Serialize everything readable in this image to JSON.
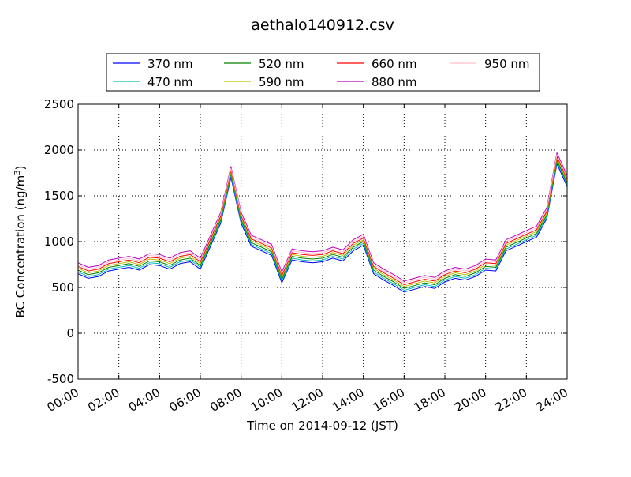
{
  "chart_data": {
    "type": "line",
    "title": "aethalo140912.csv",
    "xlabel": "Time on 2014-09-12 (JST)",
    "ylabel_main": "BC Concentration (ng/m",
    "ylabel_sup": "3",
    "ylabel_tail": ")",
    "xlim": [
      "00:00",
      "24:00"
    ],
    "ylim": [
      -500,
      2500
    ],
    "yticks": [
      -500,
      0,
      500,
      1000,
      1500,
      2000,
      2500
    ],
    "xticks": [
      "00:00",
      "02:00",
      "04:00",
      "06:00",
      "08:00",
      "10:00",
      "12:00",
      "14:00",
      "16:00",
      "18:00",
      "20:00",
      "22:00",
      "24:00"
    ],
    "grid": true,
    "legend_position": "top-center",
    "x_hours": [
      0,
      0.5,
      1,
      1.5,
      2,
      2.5,
      3,
      3.5,
      4,
      4.5,
      5,
      5.5,
      6,
      6.5,
      7,
      7.5,
      8,
      8.5,
      9,
      9.5,
      10,
      10.5,
      11,
      11.5,
      12,
      12.5,
      13,
      13.5,
      14,
      14.5,
      15,
      15.5,
      16,
      16.5,
      17,
      17.5,
      18,
      18.5,
      19,
      19.5,
      20,
      20.5,
      21,
      21.5,
      22,
      22.5,
      23,
      23.5,
      24
    ],
    "series": [
      {
        "name": "370 nm",
        "color": "#0000ff",
        "offset": 0,
        "values": [
          650,
          600,
          620,
          680,
          700,
          720,
          690,
          750,
          740,
          700,
          760,
          780,
          700,
          950,
          1200,
          1700,
          1200,
          950,
          900,
          850,
          550,
          800,
          780,
          770,
          780,
          820,
          790,
          900,
          960,
          650,
          580,
          520,
          450,
          480,
          510,
          490,
          560,
          600,
          580,
          620,
          690,
          680,
          900,
          950,
          1000,
          1050,
          1250,
          1850,
          1600
        ]
      },
      {
        "name": "470 nm",
        "color": "#00bfbf",
        "offset": 20,
        "values": [
          650,
          600,
          620,
          680,
          700,
          720,
          690,
          750,
          740,
          700,
          760,
          780,
          700,
          950,
          1200,
          1700,
          1200,
          950,
          900,
          850,
          550,
          800,
          780,
          770,
          780,
          820,
          790,
          900,
          960,
          650,
          580,
          520,
          450,
          480,
          510,
          490,
          560,
          600,
          580,
          620,
          690,
          680,
          900,
          950,
          1000,
          1050,
          1250,
          1850,
          1600
        ]
      },
      {
        "name": "520 nm",
        "color": "#008000",
        "offset": 40,
        "values": [
          650,
          600,
          620,
          680,
          700,
          720,
          690,
          750,
          740,
          700,
          760,
          780,
          700,
          950,
          1200,
          1700,
          1200,
          950,
          900,
          850,
          550,
          800,
          780,
          770,
          780,
          820,
          790,
          900,
          960,
          650,
          580,
          520,
          450,
          480,
          510,
          490,
          560,
          600,
          580,
          620,
          690,
          680,
          900,
          950,
          1000,
          1050,
          1250,
          1850,
          1600
        ]
      },
      {
        "name": "590 nm",
        "color": "#bfbf00",
        "offset": 60,
        "values": [
          650,
          600,
          620,
          680,
          700,
          720,
          690,
          750,
          740,
          700,
          760,
          780,
          700,
          950,
          1200,
          1700,
          1200,
          950,
          900,
          850,
          550,
          800,
          780,
          770,
          780,
          820,
          790,
          900,
          960,
          650,
          580,
          520,
          450,
          480,
          510,
          490,
          560,
          600,
          580,
          620,
          690,
          680,
          900,
          950,
          1000,
          1050,
          1250,
          1850,
          1600
        ]
      },
      {
        "name": "660 nm",
        "color": "#ff0000",
        "offset": 80,
        "values": [
          650,
          600,
          620,
          680,
          700,
          720,
          690,
          750,
          740,
          700,
          760,
          780,
          700,
          950,
          1200,
          1700,
          1200,
          950,
          900,
          850,
          550,
          800,
          780,
          770,
          780,
          820,
          790,
          900,
          960,
          650,
          580,
          520,
          450,
          480,
          510,
          490,
          560,
          600,
          580,
          620,
          690,
          680,
          900,
          950,
          1000,
          1050,
          1250,
          1850,
          1600
        ]
      },
      {
        "name": "880 nm",
        "color": "#bf00bf",
        "offset": 120,
        "values": [
          650,
          600,
          620,
          680,
          700,
          720,
          690,
          750,
          740,
          700,
          760,
          780,
          700,
          950,
          1200,
          1700,
          1200,
          950,
          900,
          850,
          550,
          800,
          780,
          770,
          780,
          820,
          790,
          900,
          960,
          650,
          580,
          520,
          450,
          480,
          510,
          490,
          560,
          600,
          580,
          620,
          690,
          680,
          900,
          950,
          1000,
          1050,
          1250,
          1850,
          1600
        ]
      },
      {
        "name": "950 nm",
        "color": "#ffc0cb",
        "offset": 100,
        "values": [
          650,
          600,
          620,
          680,
          700,
          720,
          690,
          750,
          740,
          700,
          760,
          780,
          700,
          950,
          1200,
          1700,
          1200,
          950,
          900,
          850,
          550,
          800,
          780,
          770,
          780,
          820,
          790,
          900,
          960,
          650,
          580,
          520,
          450,
          480,
          510,
          490,
          560,
          600,
          580,
          620,
          690,
          680,
          900,
          950,
          1000,
          1050,
          1250,
          1850,
          1600
        ]
      }
    ]
  }
}
